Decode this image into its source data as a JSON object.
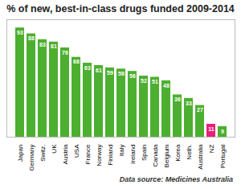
{
  "chart_data": {
    "type": "bar",
    "title": "% of new, best-in-class drugs funded 2009-2014",
    "categories": [
      "Japan",
      "Germany",
      "Switz.",
      "UK",
      "Austria",
      "USA",
      "France",
      "Norway",
      "Finland",
      "Italy",
      "Ireland",
      "Spain",
      "Canada",
      "Belgium",
      "Korea",
      "Neth.",
      "Australia",
      "NZ",
      "Portugal"
    ],
    "values": [
      93,
      88,
      83,
      81,
      76,
      68,
      63,
      61,
      59,
      58,
      56,
      52,
      51,
      48,
      36,
      33,
      27,
      11,
      9
    ],
    "colors": [
      "#4caf2f",
      "#4caf2f",
      "#4caf2f",
      "#4caf2f",
      "#4caf2f",
      "#4caf2f",
      "#4caf2f",
      "#4caf2f",
      "#4caf2f",
      "#4caf2f",
      "#4caf2f",
      "#4caf2f",
      "#4caf2f",
      "#4caf2f",
      "#4caf2f",
      "#4caf2f",
      "#4caf2f",
      "#e8207a",
      "#4caf2f"
    ],
    "ylim": [
      0,
      100
    ],
    "data_labels": true,
    "tick_labels": "x",
    "annotations": [
      "Data source: Medicines Australia"
    ]
  }
}
